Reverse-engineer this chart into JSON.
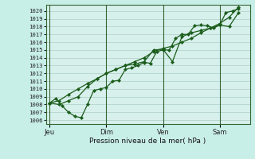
{
  "xlabel": "Pression niveau de la mer( hPa )",
  "bg_color": "#c8eee8",
  "plot_bg_color": "#d8f0ec",
  "line_color": "#1a5c1a",
  "grid_color": "#b8d8d0",
  "vline_color": "#336633",
  "ylim": [
    1005.5,
    1020.8
  ],
  "yticks": [
    1006,
    1007,
    1008,
    1009,
    1010,
    1011,
    1012,
    1013,
    1014,
    1015,
    1016,
    1017,
    1018,
    1019,
    1020
  ],
  "day_labels": [
    "Jeu",
    "Dim",
    "Ven",
    "Sam"
  ],
  "day_positions": [
    0.0,
    0.3,
    0.6,
    0.9
  ],
  "series1_x": [
    0.0,
    0.033,
    0.067,
    0.1,
    0.133,
    0.167,
    0.2,
    0.233,
    0.267,
    0.3,
    0.333,
    0.367,
    0.4,
    0.433,
    0.467,
    0.5,
    0.533,
    0.567,
    0.6,
    0.633,
    0.667,
    0.7,
    0.733,
    0.767,
    0.8,
    0.833,
    0.867,
    0.9,
    0.933,
    0.967,
    1.0
  ],
  "series1_y": [
    1008.2,
    1008.8,
    1007.8,
    1007.0,
    1006.5,
    1006.3,
    1008.0,
    1009.8,
    1010.0,
    1010.2,
    1011.0,
    1011.1,
    1012.5,
    1012.7,
    1013.0,
    1013.4,
    1013.3,
    1014.8,
    1015.0,
    1015.0,
    1016.5,
    1017.0,
    1017.0,
    1018.1,
    1018.2,
    1018.1,
    1017.8,
    1018.2,
    1019.8,
    1020.0,
    1020.3
  ],
  "series2_x": [
    0.0,
    0.05,
    0.1,
    0.15,
    0.2,
    0.25,
    0.3,
    0.35,
    0.4,
    0.45,
    0.5,
    0.55,
    0.6,
    0.65,
    0.7,
    0.75,
    0.8,
    0.85,
    0.9,
    0.95,
    1.0
  ],
  "series2_y": [
    1008.2,
    1008.5,
    1009.3,
    1010.0,
    1010.7,
    1011.3,
    1012.0,
    1012.5,
    1013.0,
    1013.5,
    1014.0,
    1014.8,
    1015.2,
    1015.5,
    1016.0,
    1016.5,
    1017.2,
    1017.8,
    1018.4,
    1019.2,
    1020.5
  ],
  "series3_x": [
    0.0,
    0.05,
    0.1,
    0.15,
    0.2,
    0.25,
    0.3,
    0.35,
    0.4,
    0.45,
    0.5,
    0.55,
    0.6,
    0.65,
    0.7,
    0.75,
    0.8,
    0.85,
    0.9,
    0.95,
    1.0
  ],
  "series3_y": [
    1008.2,
    1008.0,
    1008.5,
    1009.0,
    1010.3,
    1011.3,
    1012.0,
    1012.5,
    1013.0,
    1013.2,
    1013.5,
    1015.0,
    1015.1,
    1013.5,
    1016.7,
    1017.2,
    1017.5,
    1017.8,
    1018.2,
    1018.0,
    1019.8
  ]
}
